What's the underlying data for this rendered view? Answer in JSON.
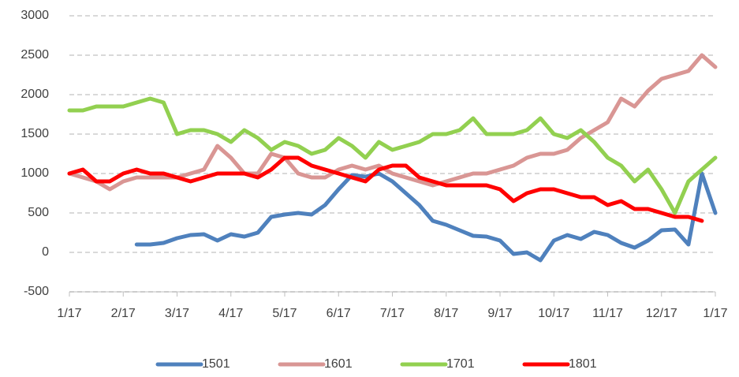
{
  "chart_data": {
    "type": "line",
    "x": [
      0,
      0.25,
      0.5,
      0.75,
      1,
      1.25,
      1.5,
      1.75,
      2,
      2.25,
      2.5,
      2.75,
      3,
      3.25,
      3.5,
      3.75,
      4,
      4.25,
      4.5,
      4.75,
      5,
      5.25,
      5.5,
      5.75,
      6,
      6.25,
      6.5,
      6.75,
      7,
      7.25,
      7.5,
      7.75,
      8,
      8.25,
      8.5,
      8.75,
      9,
      9.25,
      9.5,
      9.75,
      10,
      10.25,
      10.5,
      10.75,
      11,
      11.25,
      11.5,
      11.75,
      12
    ],
    "xlim": [
      0,
      12
    ],
    "xticks": [
      {
        "value": 0,
        "label": "1/17"
      },
      {
        "value": 1,
        "label": "2/17"
      },
      {
        "value": 2,
        "label": "3/17"
      },
      {
        "value": 3,
        "label": "4/17"
      },
      {
        "value": 4,
        "label": "5/17"
      },
      {
        "value": 5,
        "label": "6/17"
      },
      {
        "value": 6,
        "label": "7/17"
      },
      {
        "value": 7,
        "label": "8/17"
      },
      {
        "value": 8,
        "label": "9/17"
      },
      {
        "value": 9,
        "label": "10/17"
      },
      {
        "value": 10,
        "label": "11/17"
      },
      {
        "value": 11,
        "label": "12/17"
      },
      {
        "value": 12,
        "label": "1/17"
      }
    ],
    "ylim": [
      -500,
      3000
    ],
    "yticks": [
      -500,
      0,
      500,
      1000,
      1500,
      2000,
      2500,
      3000
    ],
    "grid": true,
    "legend": "bottom",
    "series": [
      {
        "name": "1501",
        "color": "#4f81bd",
        "values": [
          null,
          null,
          null,
          null,
          null,
          100,
          100,
          120,
          180,
          220,
          230,
          150,
          230,
          200,
          250,
          450,
          480,
          500,
          480,
          600,
          800,
          980,
          960,
          1000,
          900,
          750,
          600,
          400,
          350,
          280,
          210,
          200,
          150,
          -20,
          0,
          -100,
          150,
          220,
          170,
          260,
          220,
          120,
          60,
          150,
          280,
          290,
          100,
          1000,
          500
        ]
      },
      {
        "name": "1601",
        "color": "#d99694",
        "values": [
          1000,
          950,
          900,
          800,
          900,
          950,
          950,
          950,
          950,
          1000,
          1050,
          1350,
          1200,
          1000,
          1000,
          1250,
          1200,
          1000,
          950,
          950,
          1050,
          1100,
          1050,
          1100,
          1000,
          950,
          900,
          850,
          900,
          950,
          1000,
          1000,
          1050,
          1100,
          1200,
          1250,
          1250,
          1300,
          1450,
          1550,
          1650,
          1950,
          1850,
          2050,
          2200,
          2250,
          2300,
          2500,
          2350
        ]
      },
      {
        "name": "1701",
        "color": "#92d050",
        "values": [
          1800,
          1800,
          1850,
          1850,
          1850,
          1900,
          1950,
          1900,
          1500,
          1550,
          1550,
          1500,
          1400,
          1550,
          1450,
          1300,
          1400,
          1350,
          1250,
          1300,
          1450,
          1350,
          1200,
          1400,
          1300,
          1350,
          1400,
          1500,
          1500,
          1550,
          1700,
          1500,
          1500,
          1500,
          1550,
          1700,
          1500,
          1450,
          1550,
          1400,
          1200,
          1100,
          900,
          1050,
          800,
          500,
          900,
          1050,
          1200
        ]
      },
      {
        "name": "1801",
        "color": "#ff0000",
        "values": [
          1000,
          1050,
          900,
          900,
          1000,
          1050,
          1000,
          1000,
          950,
          900,
          950,
          1000,
          1000,
          1000,
          950,
          1050,
          1200,
          1200,
          1100,
          1050,
          1000,
          950,
          900,
          1050,
          1100,
          1100,
          950,
          900,
          850,
          850,
          850,
          850,
          800,
          650,
          750,
          800,
          800,
          750,
          700,
          700,
          600,
          650,
          550,
          550,
          500,
          450,
          450,
          400,
          null
        ]
      }
    ]
  }
}
